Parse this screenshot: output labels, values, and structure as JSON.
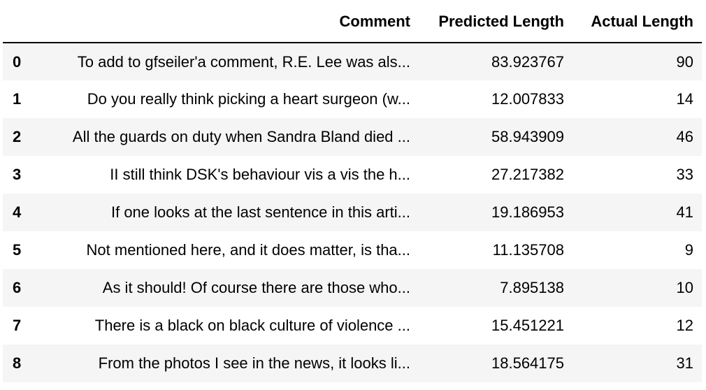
{
  "table": {
    "columns": {
      "index": "",
      "comment": "Comment",
      "predicted": "Predicted Length",
      "actual": "Actual Length"
    },
    "rows": [
      {
        "index": "0",
        "comment": "To add to gfseiler'a comment, R.E. Lee was als...",
        "predicted": "83.923767",
        "actual": "90"
      },
      {
        "index": "1",
        "comment": "Do you really think picking a heart surgeon (w...",
        "predicted": "12.007833",
        "actual": "14"
      },
      {
        "index": "2",
        "comment": "All the guards on duty when Sandra Bland died ...",
        "predicted": "58.943909",
        "actual": "46"
      },
      {
        "index": "3",
        "comment": "II still think DSK's behaviour vis a vis the h...",
        "predicted": "27.217382",
        "actual": "33"
      },
      {
        "index": "4",
        "comment": "If one looks at the last sentence in this arti...",
        "predicted": "19.186953",
        "actual": "41"
      },
      {
        "index": "5",
        "comment": "Not mentioned here, and it does matter, is tha...",
        "predicted": "11.135708",
        "actual": "9"
      },
      {
        "index": "6",
        "comment": "As it should! Of course there are those who...",
        "predicted": "7.895138",
        "actual": "10"
      },
      {
        "index": "7",
        "comment": "There is a black on black culture of violence ...",
        "predicted": "15.451221",
        "actual": "12"
      },
      {
        "index": "8",
        "comment": "From the photos I see in the news, it looks li...",
        "predicted": "18.564175",
        "actual": "31"
      }
    ]
  }
}
